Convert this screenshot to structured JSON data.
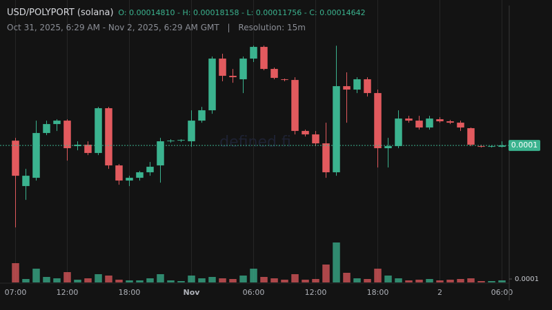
{
  "chart_data": {
    "type": "candlestick",
    "title": "USD/POLYPORT (solana)",
    "ohlc_text": "O: 0.00014810 - H: 0.00018158 - L: 0.00011756 - C: 0.00014642",
    "subtitle": "Oct 31, 2025, 6:29 AM - Nov 2, 2025, 6:29 AM GMT",
    "separator": "|",
    "resolution": "Resolution: 15m",
    "watermark": "defined.fi",
    "up_color": "#3bb38f",
    "down_color": "#e25a5e",
    "grid": true,
    "x": [
      7,
      8,
      9,
      10,
      11,
      12,
      13,
      14,
      15,
      16,
      17,
      18,
      19,
      20,
      21,
      22,
      23,
      24,
      25,
      26,
      27,
      28,
      29,
      30,
      31,
      32,
      33,
      34,
      35,
      36,
      37,
      38,
      39,
      40,
      41,
      42,
      43,
      44,
      45,
      46,
      47,
      48,
      49,
      50,
      51,
      52,
      53,
      54
    ],
    "open": [
      0.0001481,
      0.00013212,
      0.00013503,
      0.00015079,
      0.00015394,
      0.00015515,
      0.00014618,
      0.00014667,
      0.00014376,
      0.00015952,
      0.00013939,
      0.00013406,
      0.00013503,
      0.00013697,
      0.00013939,
      0.00014788,
      0.00014812,
      0.00014788,
      0.00015515,
      0.00015879,
      0.00017698,
      0.00017092,
      0.0001697,
      0.00017698,
      0.0001811,
      0.00017334,
      0.0001697,
      0.00016946,
      0.00015152,
      0.0001503,
      0.00014715,
      0.00013697,
      0.00016728,
      0.00016607,
      0.0001697,
      0.00016485,
      0.00014545,
      0.00014618,
      0.00015588,
      0.00015515,
      0.00015273,
      0.00015564,
      0.00015491,
      0.00015443,
      0.00015249,
      0.00014618,
      0.00014594,
      0.00014594
    ],
    "high": [
      0.00014909,
      0.00013818,
      0.00015515,
      0.00015515,
      0.00015564,
      0.00015564,
      0.00014788,
      0.00014788,
      0.00016,
      0.00016,
      0.00013988,
      0.00013575,
      0.00013745,
      0.0001406,
      0.00014909,
      0.00014861,
      0.00014861,
      0.00015879,
      0.00016,
      0.00017771,
      0.00017868,
      0.00017334,
      0.00017771,
      0.00018158,
      0.00018158,
      0.00017383,
      0.00016995,
      0.00017043,
      0.000152,
      0.00015152,
      0.00015443,
      0.0001815,
      0.00017213,
      0.00017043,
      0.00017043,
      0.00016607,
      0.00014909,
      0.00015879,
      0.00015685,
      0.00015685,
      0.00015685,
      0.00015637,
      0.0001554,
      0.00015515,
      0.00015273,
      0.00014667,
      0.00014642,
      0.00014788
    ],
    "low": [
      0.00011756,
      0.00012727,
      0.00013406,
      0.00015006,
      0.00015152,
      0.00014109,
      0.00014473,
      0.00014303,
      0.00014303,
      0.00013818,
      0.0001326,
      0.00013212,
      0.00013406,
      0.00013575,
      0.00013333,
      0.00014739,
      0.00014764,
      0.00014594,
      0.00015443,
      0.00015758,
      0.00016898,
      0.00016849,
      0.00016485,
      0.00017577,
      0.00017286,
      0.0001697,
      0.00016898,
      0.0001503,
      0.00014958,
      0.00014618,
      0.00013503,
      0.00013575,
      0.00015443,
      0.00016485,
      0.00016364,
      0.00013866,
      0.00013866,
      0.00014545,
      0.00015443,
      0.000152,
      0.000152,
      0.00015443,
      0.00015394,
      0.00015152,
      0.00014618,
      0.0001457,
      0.0001457,
      0.0001457
    ],
    "close": [
      0.00013575,
      0.00013575,
      0.00015079,
      0.00015394,
      0.00015515,
      0.00014545,
      0.00014667,
      0.00014376,
      0.00015952,
      0.00013939,
      0.00013406,
      0.00013503,
      0.00013697,
      0.00013891,
      0.00014788,
      0.00014812,
      0.00014836,
      0.00015515,
      0.00015879,
      0.00017698,
      0.00017092,
      0.00017043,
      0.00017698,
      0.0001811,
      0.00017334,
      0.00017019,
      0.00016946,
      0.00015152,
      0.0001503,
      0.00014715,
      0.00013697,
      0.00016728,
      0.00016607,
      0.0001697,
      0.00016485,
      0.00014545,
      0.00014618,
      0.00015588,
      0.00015515,
      0.00015273,
      0.00015588,
      0.00015491,
      0.00015443,
      0.00015273,
      0.00014667,
      0.00014594,
      0.00014618,
      0.00014642
    ],
    "volume": [
      0.00056,
      0.0001,
      0.0004,
      0.00016,
      0.00012,
      0.0003,
      8e-05,
      0.00012,
      0.00024,
      0.0002,
      8e-05,
      6e-05,
      6e-05,
      0.00012,
      0.00024,
      6e-05,
      4e-05,
      0.0002,
      0.00012,
      0.00016,
      0.00012,
      0.0001,
      0.0002,
      0.0004,
      0.00016,
      0.00012,
      8e-05,
      0.00024,
      8e-05,
      0.0001,
      0.00052,
      0.00116,
      0.00028,
      0.00012,
      0.0001,
      0.0004,
      0.0002,
      0.00012,
      6e-05,
      8e-05,
      0.0001,
      6e-05,
      8e-05,
      0.0001,
      0.00012,
      4e-05,
      4e-05,
      6e-05
    ],
    "xlim": [
      5.5,
      54.7
    ],
    "ylim": [
      9.82e-05,
      0.0001976
    ],
    "y2lim": [
      0,
      0.0082
    ],
    "xticks": [
      {
        "value": 7,
        "label": "07:00"
      },
      {
        "value": 12,
        "label": "12:00"
      },
      {
        "value": 18,
        "label": "18:00"
      },
      {
        "value": 24,
        "label": "Nov"
      },
      {
        "value": 30,
        "label": "06:00"
      },
      {
        "value": 36,
        "label": "12:00"
      },
      {
        "value": 42,
        "label": "18:00"
      },
      {
        "value": 48,
        "label": "2"
      },
      {
        "value": 54,
        "label": "06:00"
      }
    ],
    "y2ticks": [
      {
        "value": 0.0001,
        "label": "0.0001"
      }
    ],
    "last_price": {
      "value": 0.00014642,
      "label": "0.0001"
    }
  }
}
